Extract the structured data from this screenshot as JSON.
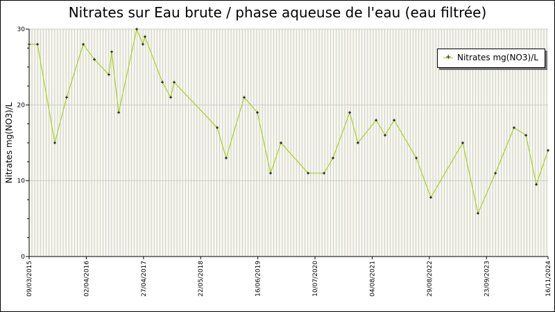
{
  "chart_data": {
    "type": "line",
    "title": "Nitrates sur Eau brute / phase aqueuse de l'eau (eau filtrée)",
    "xlabel": "",
    "ylabel": "Nitrates mg(NO3)/L",
    "ylim": [
      0,
      30
    ],
    "yticks": [
      "0",
      "10",
      "20",
      "30"
    ],
    "xlim": [
      "2015-03-09",
      "2024-11-16"
    ],
    "xticks": [
      "09/03/2015",
      "02/04/2016",
      "27/04/2017",
      "22/05/2018",
      "16/06/2019",
      "10/07/2020",
      "04/08/2021",
      "29/08/2022",
      "23/09/2023",
      "16/11/2024"
    ],
    "grid": true,
    "legend_position": "top-right",
    "series": [
      {
        "name": "Nitrates mg(NO3)/L",
        "color": "#99cc00",
        "marker": "+",
        "x": [
          "2015-03-09",
          "2015-05-05",
          "2015-08-31",
          "2015-11-20",
          "2016-03-12",
          "2016-05-27",
          "2016-09-03",
          "2016-09-22",
          "2016-11-09",
          "2017-03-12",
          "2017-04-23",
          "2017-05-07",
          "2017-09-03",
          "2017-10-30",
          "2017-11-22",
          "2018-09-12",
          "2018-11-12",
          "2019-03-15",
          "2019-06-13",
          "2019-09-11",
          "2019-11-21",
          "2020-05-24",
          "2020-09-10",
          "2020-11-10",
          "2021-03-04",
          "2021-04-29",
          "2021-08-31",
          "2021-10-31",
          "2022-01-01",
          "2022-06-01",
          "2022-09-08",
          "2023-04-14",
          "2023-07-27",
          "2023-11-23",
          "2024-03-29",
          "2024-06-18",
          "2024-08-28",
          "2024-11-16"
        ],
        "y": [
          28,
          28,
          15,
          21,
          28,
          26,
          24,
          27,
          19,
          30,
          28,
          29,
          23,
          21,
          23,
          17,
          13,
          21,
          19,
          11,
          15,
          11,
          11,
          13,
          19,
          15,
          18,
          16,
          18,
          13,
          7.8,
          15,
          5.7,
          11,
          17,
          16,
          9.5,
          14
        ]
      }
    ]
  }
}
